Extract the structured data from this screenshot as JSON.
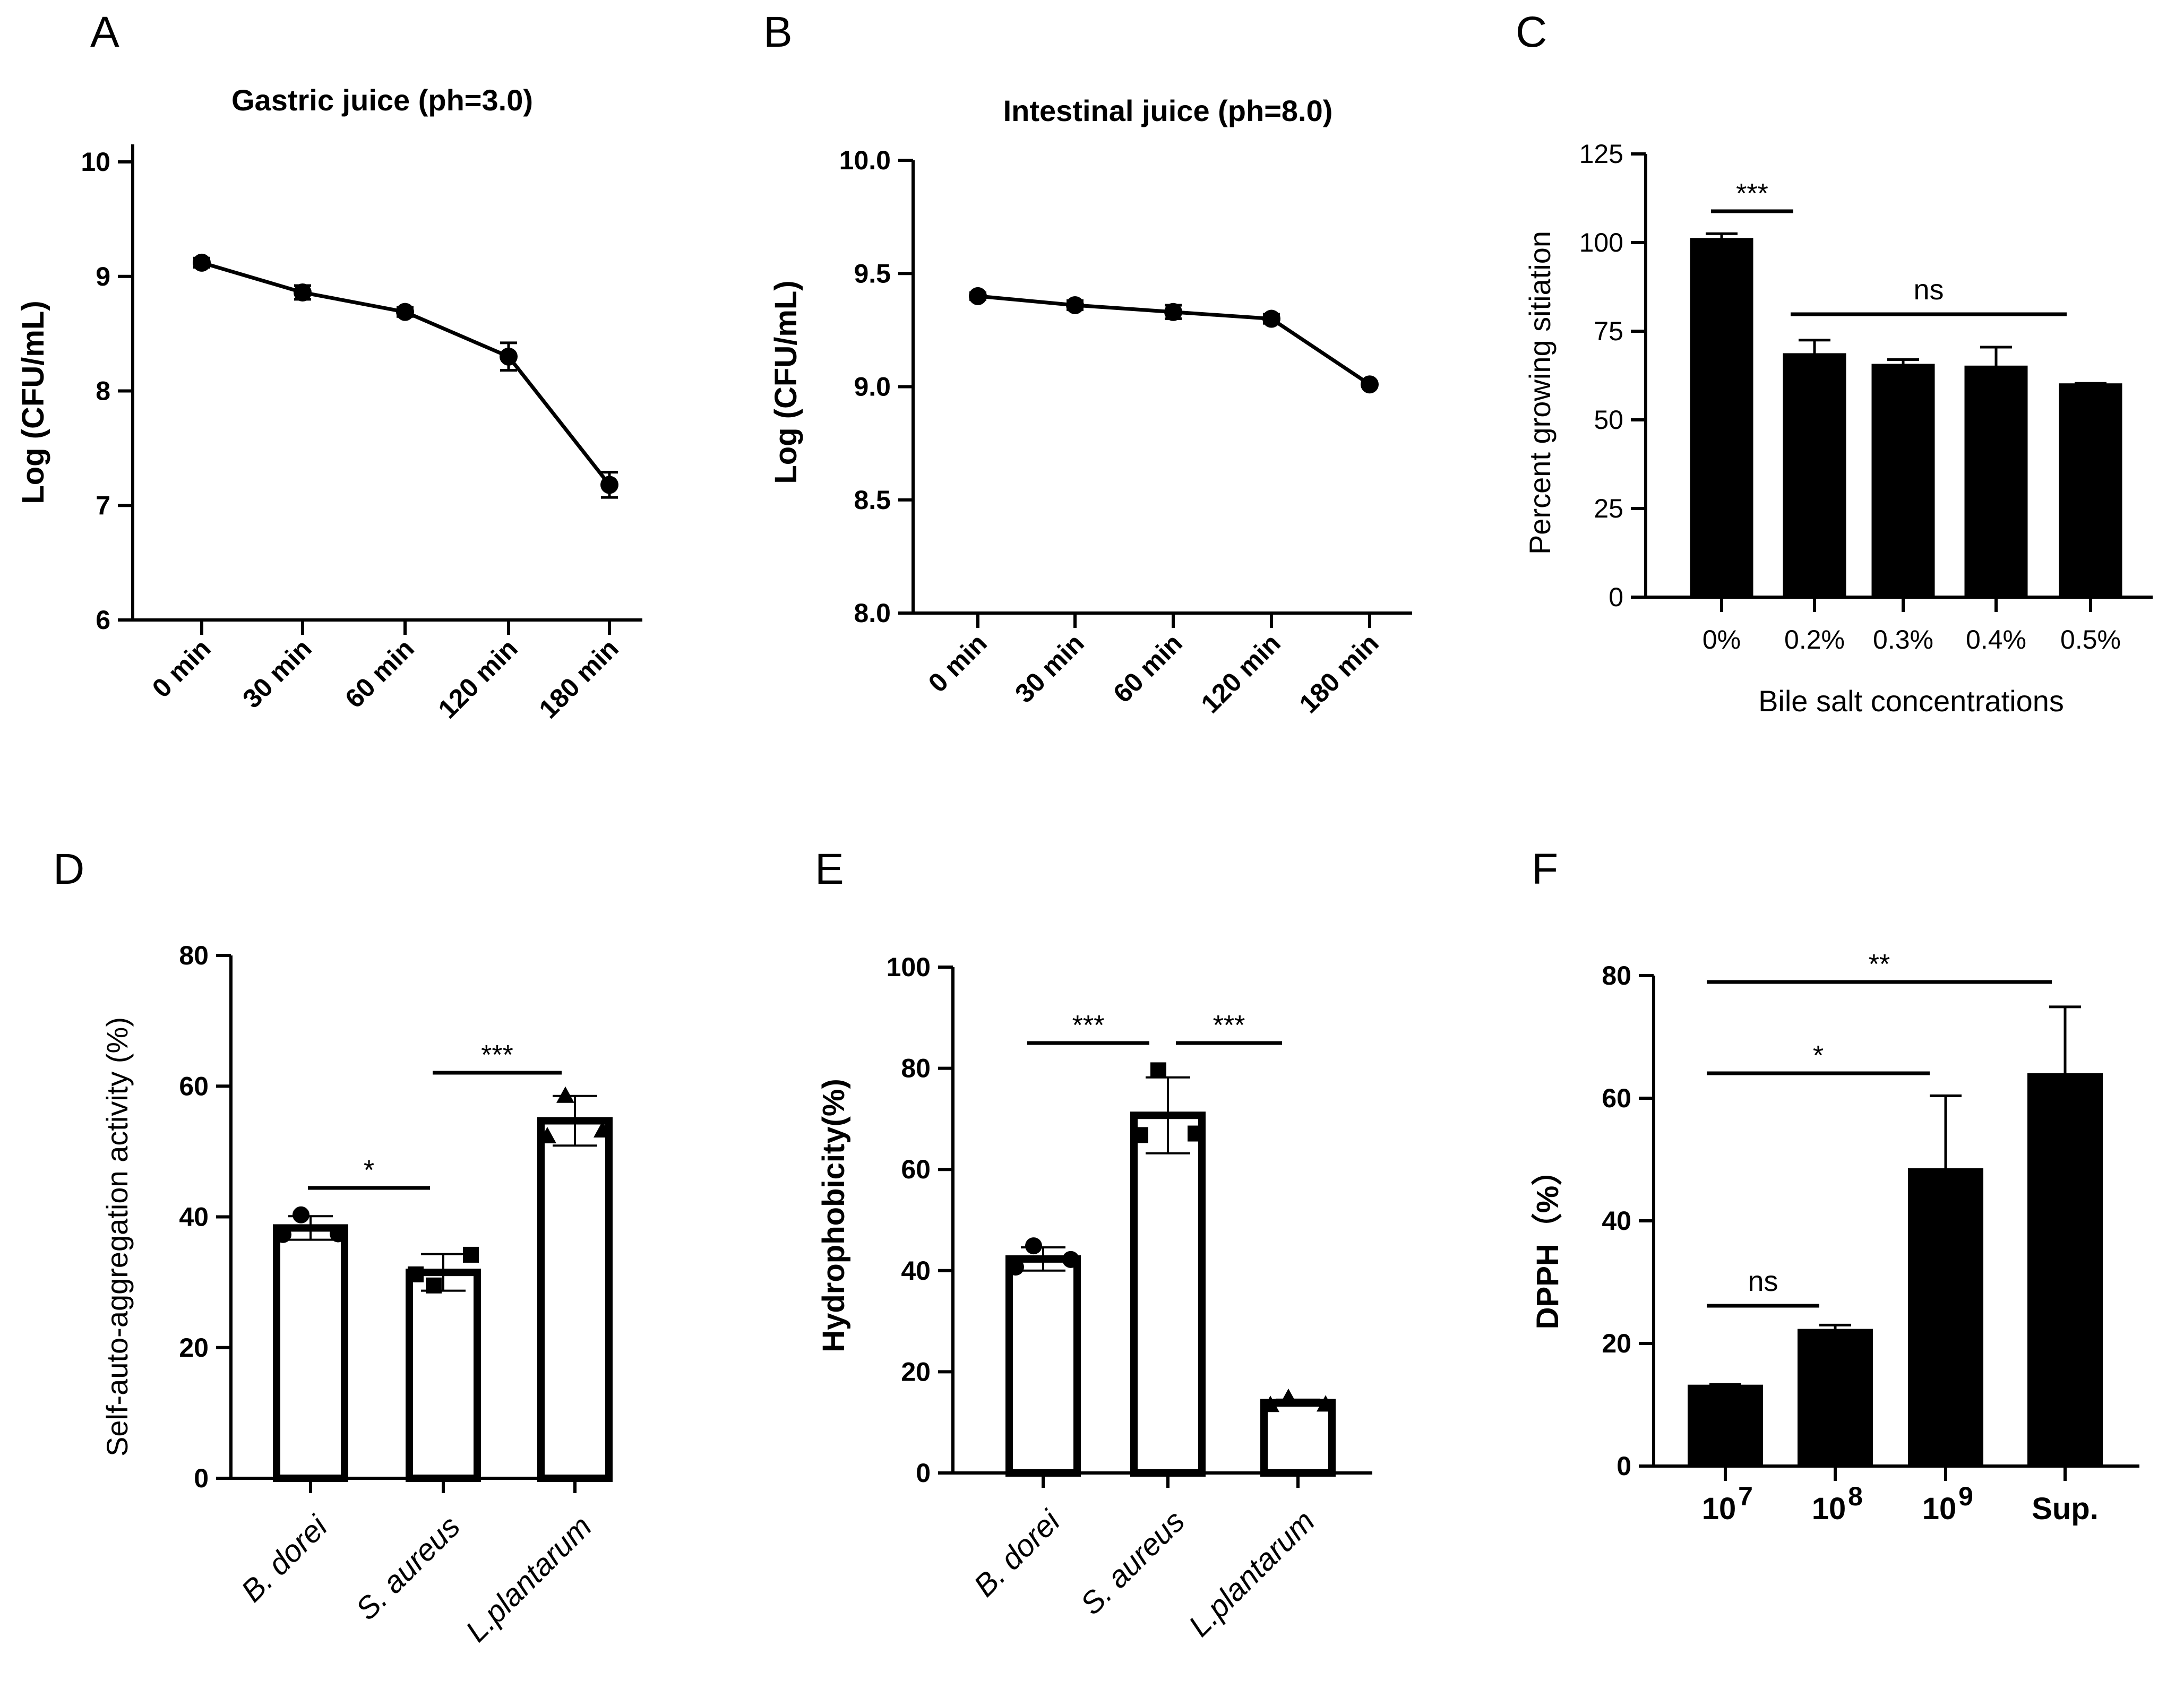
{
  "chart_data": [
    {
      "panel": "A",
      "type": "line",
      "title": "Gastric juice (ph=3.0)",
      "ylabel": "Log (CFU/mL)",
      "xlabel": "",
      "categories": [
        "0 min",
        "30 min",
        "60 min",
        "120 min",
        "180 min"
      ],
      "values": [
        9.12,
        8.86,
        8.69,
        8.3,
        7.18
      ],
      "errors": [
        0.04,
        0.06,
        0.04,
        0.12,
        0.11
      ],
      "ylim": [
        6,
        10
      ],
      "yticks": [
        "6",
        "7",
        "8",
        "9",
        "10"
      ]
    },
    {
      "panel": "B",
      "type": "line",
      "title": "Intestinal juice (ph=8.0)",
      "ylabel": "Log (CFU/mL)",
      "xlabel": "",
      "categories": [
        "0 min",
        "30 min",
        "60 min",
        "120 min",
        "180 min"
      ],
      "values": [
        9.4,
        9.36,
        9.33,
        9.3,
        9.01
      ],
      "errors": [
        0.015,
        0.02,
        0.03,
        0.02,
        0.01
      ],
      "ylim": [
        8.0,
        10.0
      ],
      "yticks": [
        "8.0",
        "8.5",
        "9.0",
        "9.5",
        "10.0"
      ]
    },
    {
      "panel": "C",
      "type": "bar",
      "title": "",
      "ylabel": "Percent growing sitiation",
      "xlabel": "Bile salt concentrations",
      "categories": [
        "0%",
        "0.2%",
        "0.3%",
        "0.4%",
        "0.5%"
      ],
      "values": [
        101,
        68.5,
        65.5,
        65,
        60
      ],
      "errors": [
        1.5,
        4,
        1.5,
        5.5,
        0.3
      ],
      "ylim": [
        0,
        125
      ],
      "yticks": [
        "0",
        "25",
        "50",
        "75",
        "100",
        "125"
      ],
      "significance": [
        {
          "label": "***",
          "from": 0,
          "to": 1
        },
        {
          "label": "ns",
          "from": 1,
          "to": 4
        }
      ]
    },
    {
      "panel": "D",
      "type": "bar",
      "title": "",
      "ylabel": "Self-auto-aggregation activity (%)",
      "xlabel": "",
      "categories": [
        "B. dorei",
        "S. aureus",
        "L.plantarum"
      ],
      "values": [
        38.3,
        31.5,
        54.7
      ],
      "errors": [
        1.8,
        2.8,
        3.8
      ],
      "points": [
        [
          40.3,
          37.3,
          37.4
        ],
        [
          29.5,
          31.2,
          34.2
        ],
        [
          58.5,
          52.3,
          53.2
        ]
      ],
      "ylim": [
        0,
        80
      ],
      "yticks": [
        "0",
        "20",
        "40",
        "60",
        "80"
      ],
      "significance": [
        {
          "label": "*",
          "from": 0,
          "to": 1
        },
        {
          "label": "***",
          "from": 1,
          "to": 2
        }
      ]
    },
    {
      "panel": "E",
      "type": "bar",
      "title": "",
      "ylabel": "Hydrophobicity(%)",
      "xlabel": "",
      "categories": [
        "B. dorei",
        "S. aureus",
        "L.plantarum"
      ],
      "values": [
        42.3,
        70.7,
        13.9
      ],
      "errors": [
        2.3,
        7.5,
        0.6
      ],
      "points": [
        [
          44.9,
          40.7,
          42.2
        ],
        [
          79.6,
          66.8,
          67.1
        ],
        [
          14.8,
          13.4,
          13.5
        ]
      ],
      "ylim": [
        0,
        100
      ],
      "yticks": [
        "0",
        "20",
        "40",
        "60",
        "80",
        "100"
      ],
      "significance": [
        {
          "label": "***",
          "from": 0,
          "to": 1
        },
        {
          "label": "***",
          "from": 1,
          "to": 2
        }
      ]
    },
    {
      "panel": "F",
      "type": "bar",
      "title": "",
      "ylabel": "DPPH（%）",
      "xlabel": "",
      "categories": [
        "10",
        "10",
        "10",
        "Sup."
      ],
      "category_superscripts": [
        "7",
        "8",
        "9",
        ""
      ],
      "values": [
        13.1,
        22.2,
        48.4,
        63.9
      ],
      "errors": [
        0.2,
        0.8,
        12,
        11
      ],
      "ylim": [
        0,
        80
      ],
      "yticks": [
        "0",
        "20",
        "40",
        "60",
        "80"
      ],
      "significance": [
        {
          "label": "ns",
          "from": 0,
          "to": 1
        },
        {
          "label": "*",
          "from": 0,
          "to": 2
        },
        {
          "label": "**",
          "from": 0,
          "to": 3
        }
      ]
    }
  ]
}
